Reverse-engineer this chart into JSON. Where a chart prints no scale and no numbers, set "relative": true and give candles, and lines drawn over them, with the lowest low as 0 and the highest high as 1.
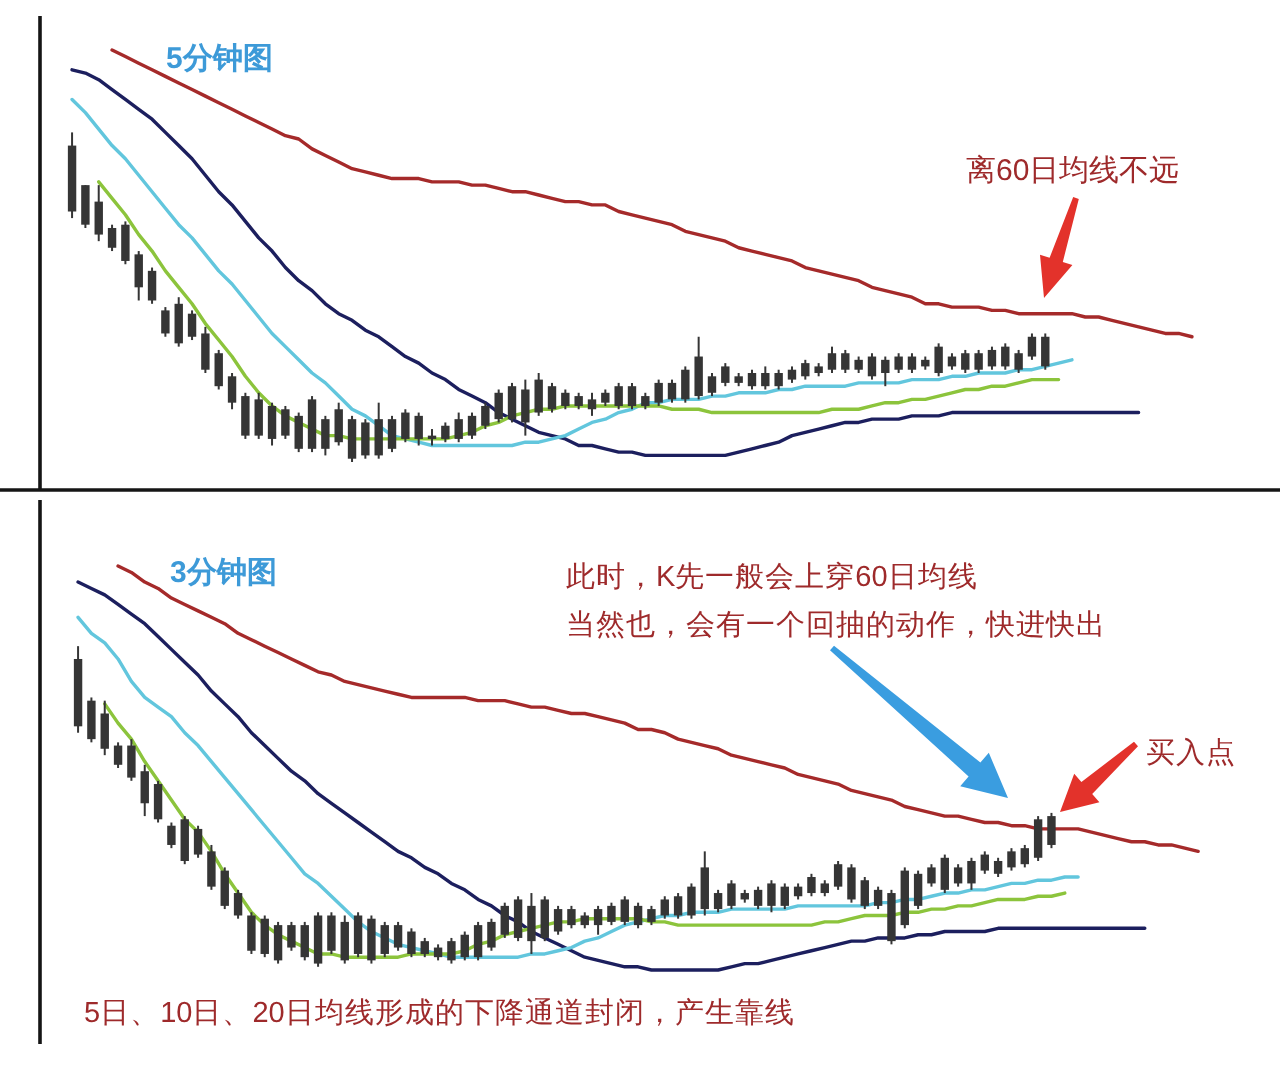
{
  "chart_data": [
    {
      "type": "candlestick",
      "title": "5分钟图",
      "relative": true,
      "color": "#353535",
      "categories": [
        null,
        null,
        null,
        null,
        null,
        null,
        null,
        null,
        null,
        null,
        null,
        null,
        null,
        null,
        null,
        null,
        null,
        null,
        null,
        null,
        null,
        null,
        null,
        null,
        null,
        null,
        null,
        null,
        null,
        null,
        null,
        null,
        null,
        null,
        null,
        null,
        null,
        null,
        null,
        null,
        null,
        null,
        null,
        null,
        null,
        null,
        null,
        null,
        null,
        null,
        null,
        null,
        null,
        null,
        null,
        null,
        null,
        null,
        null,
        null,
        null,
        null,
        null,
        null,
        null,
        null,
        null,
        null,
        null,
        null,
        null,
        null,
        null,
        null,
        null,
        null,
        null,
        null,
        null,
        null,
        null,
        null,
        null,
        null,
        null
      ],
      "ohlc": [
        [
          0.96,
          1.0,
          0.74,
          0.76
        ],
        [
          0.84,
          0.84,
          0.71,
          0.72
        ],
        [
          0.79,
          0.84,
          0.67,
          0.69
        ],
        [
          0.71,
          0.72,
          0.64,
          0.65
        ],
        [
          0.72,
          0.73,
          0.6,
          0.61
        ],
        [
          0.63,
          0.64,
          0.49,
          0.53
        ],
        [
          0.58,
          0.59,
          0.48,
          0.49
        ],
        [
          0.46,
          0.47,
          0.38,
          0.39
        ],
        [
          0.48,
          0.5,
          0.35,
          0.36
        ],
        [
          0.45,
          0.46,
          0.37,
          0.38
        ],
        [
          0.39,
          0.41,
          0.27,
          0.28
        ],
        [
          0.33,
          0.34,
          0.22,
          0.23
        ],
        [
          0.26,
          0.27,
          0.16,
          0.18
        ],
        [
          0.2,
          0.21,
          0.07,
          0.08
        ],
        [
          0.19,
          0.21,
          0.07,
          0.08
        ],
        [
          0.17,
          0.18,
          0.05,
          0.07
        ],
        [
          0.16,
          0.17,
          0.07,
          0.08
        ],
        [
          0.14,
          0.15,
          0.03,
          0.04
        ],
        [
          0.19,
          0.2,
          0.03,
          0.04
        ],
        [
          0.13,
          0.14,
          0.02,
          0.04
        ],
        [
          0.16,
          0.18,
          0.05,
          0.06
        ],
        [
          0.13,
          0.14,
          0.0,
          0.01
        ],
        [
          0.12,
          0.13,
          0.01,
          0.02
        ],
        [
          0.13,
          0.18,
          0.01,
          0.02
        ],
        [
          0.13,
          0.14,
          0.03,
          0.04
        ],
        [
          0.15,
          0.16,
          0.06,
          0.07
        ],
        [
          0.14,
          0.15,
          0.05,
          0.07
        ],
        [
          0.08,
          0.1,
          0.05,
          0.07
        ],
        [
          0.11,
          0.12,
          0.06,
          0.07
        ],
        [
          0.13,
          0.15,
          0.06,
          0.07
        ],
        [
          0.14,
          0.15,
          0.07,
          0.08
        ],
        [
          0.17,
          0.18,
          0.1,
          0.11
        ],
        [
          0.21,
          0.22,
          0.12,
          0.13
        ],
        [
          0.23,
          0.24,
          0.12,
          0.13
        ],
        [
          0.22,
          0.25,
          0.08,
          0.12
        ],
        [
          0.25,
          0.27,
          0.14,
          0.15
        ],
        [
          0.23,
          0.24,
          0.15,
          0.16
        ],
        [
          0.21,
          0.22,
          0.16,
          0.17
        ],
        [
          0.2,
          0.21,
          0.16,
          0.17
        ],
        [
          0.19,
          0.21,
          0.14,
          0.16
        ],
        [
          0.21,
          0.22,
          0.17,
          0.18
        ],
        [
          0.23,
          0.24,
          0.16,
          0.17
        ],
        [
          0.23,
          0.24,
          0.16,
          0.17
        ],
        [
          0.2,
          0.21,
          0.16,
          0.17
        ],
        [
          0.24,
          0.25,
          0.17,
          0.18
        ],
        [
          0.24,
          0.25,
          0.18,
          0.19
        ],
        [
          0.28,
          0.29,
          0.18,
          0.19
        ],
        [
          0.32,
          0.38,
          0.19,
          0.2
        ],
        [
          0.26,
          0.27,
          0.2,
          0.21
        ],
        [
          0.29,
          0.3,
          0.23,
          0.24
        ],
        [
          0.26,
          0.27,
          0.23,
          0.24
        ],
        [
          0.27,
          0.28,
          0.22,
          0.23
        ],
        [
          0.27,
          0.29,
          0.22,
          0.23
        ],
        [
          0.27,
          0.28,
          0.22,
          0.23
        ],
        [
          0.28,
          0.29,
          0.24,
          0.25
        ],
        [
          0.3,
          0.31,
          0.25,
          0.26
        ],
        [
          0.29,
          0.3,
          0.26,
          0.27
        ],
        [
          0.33,
          0.35,
          0.27,
          0.28
        ],
        [
          0.33,
          0.34,
          0.27,
          0.28
        ],
        [
          0.31,
          0.32,
          0.27,
          0.28
        ],
        [
          0.32,
          0.33,
          0.25,
          0.26
        ],
        [
          0.31,
          0.32,
          0.23,
          0.27
        ],
        [
          0.32,
          0.33,
          0.27,
          0.28
        ],
        [
          0.32,
          0.33,
          0.27,
          0.28
        ],
        [
          0.31,
          0.32,
          0.28,
          0.29
        ],
        [
          0.35,
          0.36,
          0.26,
          0.27
        ],
        [
          0.32,
          0.33,
          0.28,
          0.29
        ],
        [
          0.33,
          0.34,
          0.27,
          0.28
        ],
        [
          0.33,
          0.34,
          0.27,
          0.28
        ],
        [
          0.34,
          0.35,
          0.28,
          0.29
        ],
        [
          0.35,
          0.36,
          0.28,
          0.29
        ],
        [
          0.33,
          0.34,
          0.27,
          0.28
        ],
        [
          0.38,
          0.39,
          0.31,
          0.32
        ],
        [
          0.38,
          0.39,
          0.28,
          0.29
        ],
        null,
        null,
        null,
        null,
        null,
        null,
        null,
        null,
        null,
        null,
        null
      ],
      "series": [
        {
          "type": "line",
          "color": "#a52a2a",
          "values": [
            null,
            null,
            null,
            1.25,
            1.23,
            1.21,
            1.19,
            1.17,
            1.15,
            1.13,
            1.11,
            1.09,
            1.07,
            1.05,
            1.03,
            1.01,
            0.99,
            0.98,
            0.95,
            0.93,
            0.91,
            0.89,
            0.88,
            0.87,
            0.86,
            0.86,
            0.86,
            0.85,
            0.85,
            0.85,
            0.84,
            0.84,
            0.83,
            0.82,
            0.82,
            0.81,
            0.8,
            0.79,
            0.79,
            0.78,
            0.78,
            0.76,
            0.75,
            0.74,
            0.73,
            0.72,
            0.7,
            0.69,
            0.68,
            0.67,
            0.65,
            0.64,
            0.63,
            0.62,
            0.61,
            0.59,
            0.58,
            0.57,
            0.56,
            0.55,
            0.53,
            0.52,
            0.51,
            0.5,
            0.48,
            0.48,
            0.47,
            0.47,
            0.47,
            0.46,
            0.46,
            0.45,
            0.45,
            0.45,
            0.45,
            0.45,
            0.44,
            0.44,
            0.43,
            0.42,
            0.41,
            0.4,
            0.39,
            0.39,
            0.38
          ]
        },
        {
          "type": "line",
          "color": "#1c1f5e",
          "values": [
            1.19,
            1.18,
            1.16,
            1.13,
            1.1,
            1.07,
            1.04,
            1.0,
            0.96,
            0.92,
            0.87,
            0.82,
            0.78,
            0.73,
            0.68,
            0.64,
            0.59,
            0.55,
            0.52,
            0.48,
            0.45,
            0.43,
            0.4,
            0.38,
            0.35,
            0.32,
            0.3,
            0.27,
            0.25,
            0.22,
            0.2,
            0.18,
            0.15,
            0.13,
            0.11,
            0.09,
            0.08,
            0.07,
            0.05,
            0.05,
            0.04,
            0.03,
            0.03,
            0.02,
            0.02,
            0.02,
            0.02,
            0.02,
            0.02,
            0.02,
            0.03,
            0.04,
            0.05,
            0.06,
            0.08,
            0.09,
            0.1,
            0.11,
            0.12,
            0.12,
            0.13,
            0.13,
            0.13,
            0.14,
            0.14,
            0.14,
            0.15,
            0.15,
            0.15,
            0.15,
            0.15,
            0.15,
            0.15,
            0.15,
            0.15,
            0.15,
            0.15,
            0.15,
            0.15,
            0.15,
            0.15,
            null,
            null,
            null,
            null
          ]
        },
        {
          "type": "line",
          "color": "#62c6dd",
          "values": [
            1.1,
            1.06,
            1.01,
            0.96,
            0.92,
            0.87,
            0.82,
            0.77,
            0.72,
            0.68,
            0.63,
            0.58,
            0.54,
            0.49,
            0.44,
            0.39,
            0.35,
            0.31,
            0.27,
            0.24,
            0.2,
            0.16,
            0.14,
            0.11,
            0.08,
            0.07,
            0.06,
            0.05,
            0.05,
            0.05,
            0.05,
            0.05,
            0.05,
            0.05,
            0.06,
            0.06,
            0.07,
            0.08,
            0.1,
            0.12,
            0.13,
            0.15,
            0.16,
            0.18,
            0.18,
            0.19,
            0.19,
            0.19,
            0.2,
            0.2,
            0.21,
            0.21,
            0.21,
            0.22,
            0.22,
            0.23,
            0.23,
            0.23,
            0.23,
            0.24,
            0.24,
            0.24,
            0.24,
            0.25,
            0.25,
            0.25,
            0.26,
            0.26,
            0.27,
            0.27,
            0.27,
            0.28,
            0.28,
            0.29,
            0.3,
            0.31,
            null,
            null,
            null,
            null,
            null,
            null,
            null,
            null,
            null
          ]
        },
        {
          "type": "line",
          "color": "#8cc43c",
          "values": [
            null,
            null,
            0.85,
            0.8,
            0.75,
            0.69,
            0.64,
            0.58,
            0.53,
            0.48,
            0.42,
            0.37,
            0.32,
            0.26,
            0.21,
            0.17,
            0.14,
            0.12,
            0.1,
            0.08,
            0.08,
            0.07,
            0.07,
            0.07,
            0.07,
            0.07,
            0.07,
            0.07,
            0.07,
            0.08,
            0.09,
            0.11,
            0.12,
            0.14,
            0.15,
            0.16,
            0.16,
            0.17,
            0.17,
            0.17,
            0.17,
            0.17,
            0.17,
            0.17,
            0.17,
            0.16,
            0.16,
            0.16,
            0.15,
            0.15,
            0.15,
            0.15,
            0.15,
            0.15,
            0.15,
            0.15,
            0.15,
            0.16,
            0.16,
            0.16,
            0.17,
            0.18,
            0.18,
            0.19,
            0.19,
            0.2,
            0.21,
            0.22,
            0.22,
            0.23,
            0.23,
            0.24,
            0.25,
            0.25,
            0.25,
            null,
            null,
            null,
            null,
            null,
            null,
            null,
            null,
            null,
            null
          ]
        }
      ],
      "annotations": [
        "离60日均线不远"
      ]
    },
    {
      "type": "candlestick",
      "title": "3分钟图",
      "relative": true,
      "color": "#353535",
      "categories": [
        null,
        null,
        null,
        null,
        null,
        null,
        null,
        null,
        null,
        null,
        null,
        null,
        null,
        null,
        null,
        null,
        null,
        null,
        null,
        null,
        null,
        null,
        null,
        null,
        null,
        null,
        null,
        null,
        null,
        null,
        null,
        null,
        null,
        null,
        null,
        null,
        null,
        null,
        null,
        null,
        null,
        null,
        null,
        null,
        null,
        null,
        null,
        null,
        null,
        null,
        null,
        null,
        null,
        null,
        null,
        null,
        null,
        null,
        null,
        null,
        null,
        null,
        null,
        null,
        null,
        null,
        null,
        null,
        null,
        null,
        null,
        null,
        null,
        null,
        null,
        null,
        null,
        null,
        null,
        null,
        null,
        null,
        null,
        null,
        null
      ],
      "ohlc": [
        [
          0.96,
          1.0,
          0.73,
          0.75
        ],
        [
          0.83,
          0.84,
          0.7,
          0.71
        ],
        [
          0.79,
          0.83,
          0.66,
          0.68
        ],
        [
          0.69,
          0.7,
          0.62,
          0.63
        ],
        [
          0.69,
          0.71,
          0.58,
          0.59
        ],
        [
          0.61,
          0.63,
          0.47,
          0.51
        ],
        [
          0.57,
          0.58,
          0.45,
          0.46
        ],
        [
          0.44,
          0.45,
          0.37,
          0.38
        ],
        [
          0.46,
          0.47,
          0.32,
          0.33
        ],
        [
          0.43,
          0.44,
          0.34,
          0.35
        ],
        [
          0.36,
          0.38,
          0.24,
          0.25
        ],
        [
          0.3,
          0.31,
          0.18,
          0.19
        ],
        [
          0.23,
          0.24,
          0.15,
          0.16
        ],
        [
          0.16,
          0.17,
          0.04,
          0.05
        ],
        [
          0.15,
          0.16,
          0.03,
          0.04
        ],
        [
          0.13,
          0.14,
          0.01,
          0.02
        ],
        [
          0.13,
          0.14,
          0.05,
          0.06
        ],
        [
          0.13,
          0.14,
          0.02,
          0.03
        ],
        [
          0.16,
          0.17,
          0.0,
          0.01
        ],
        [
          0.16,
          0.17,
          0.04,
          0.05
        ],
        [
          0.14,
          0.16,
          0.01,
          0.02
        ],
        [
          0.16,
          0.17,
          0.03,
          0.04
        ],
        [
          0.15,
          0.16,
          0.01,
          0.02
        ],
        [
          0.13,
          0.14,
          0.03,
          0.04
        ],
        [
          0.13,
          0.14,
          0.05,
          0.06
        ],
        [
          0.11,
          0.12,
          0.03,
          0.04
        ],
        [
          0.08,
          0.09,
          0.03,
          0.04
        ],
        [
          0.06,
          0.07,
          0.02,
          0.03
        ],
        [
          0.08,
          0.09,
          0.01,
          0.02
        ],
        [
          0.1,
          0.11,
          0.02,
          0.03
        ],
        [
          0.13,
          0.14,
          0.02,
          0.03
        ],
        [
          0.14,
          0.15,
          0.05,
          0.06
        ],
        [
          0.19,
          0.2,
          0.09,
          0.1
        ],
        [
          0.21,
          0.22,
          0.08,
          0.09
        ],
        [
          0.19,
          0.23,
          0.04,
          0.08
        ],
        [
          0.21,
          0.22,
          0.08,
          0.09
        ],
        [
          0.18,
          0.19,
          0.1,
          0.11
        ],
        [
          0.18,
          0.19,
          0.12,
          0.13
        ],
        [
          0.16,
          0.17,
          0.12,
          0.13
        ],
        [
          0.18,
          0.19,
          0.1,
          0.13
        ],
        [
          0.19,
          0.2,
          0.13,
          0.14
        ],
        [
          0.21,
          0.22,
          0.13,
          0.14
        ],
        [
          0.19,
          0.2,
          0.12,
          0.13
        ],
        [
          0.18,
          0.19,
          0.13,
          0.14
        ],
        [
          0.21,
          0.22,
          0.15,
          0.16
        ],
        [
          0.22,
          0.23,
          0.15,
          0.16
        ],
        [
          0.25,
          0.26,
          0.15,
          0.16
        ],
        [
          0.31,
          0.36,
          0.16,
          0.18
        ],
        [
          0.23,
          0.24,
          0.17,
          0.18
        ],
        [
          0.26,
          0.27,
          0.18,
          0.19
        ],
        [
          0.23,
          0.24,
          0.2,
          0.21
        ],
        [
          0.24,
          0.25,
          0.18,
          0.19
        ],
        [
          0.26,
          0.27,
          0.17,
          0.19
        ],
        [
          0.25,
          0.26,
          0.18,
          0.19
        ],
        [
          0.25,
          0.26,
          0.21,
          0.22
        ],
        [
          0.28,
          0.29,
          0.22,
          0.23
        ],
        [
          0.26,
          0.27,
          0.22,
          0.23
        ],
        [
          0.32,
          0.33,
          0.24,
          0.25
        ],
        [
          0.31,
          0.32,
          0.2,
          0.21
        ],
        [
          0.27,
          0.28,
          0.18,
          0.19
        ],
        [
          0.24,
          0.25,
          0.18,
          0.19
        ],
        [
          0.23,
          0.24,
          0.07,
          0.08
        ],
        [
          0.3,
          0.31,
          0.12,
          0.13
        ],
        [
          0.29,
          0.3,
          0.18,
          0.19
        ],
        [
          0.31,
          0.32,
          0.25,
          0.26
        ],
        [
          0.34,
          0.35,
          0.23,
          0.24
        ],
        [
          0.31,
          0.32,
          0.25,
          0.26
        ],
        [
          0.33,
          0.34,
          0.24,
          0.26
        ],
        [
          0.35,
          0.36,
          0.29,
          0.3
        ],
        [
          0.33,
          0.34,
          0.28,
          0.29
        ],
        [
          0.36,
          0.37,
          0.3,
          0.31
        ],
        [
          0.37,
          0.38,
          0.31,
          0.32
        ],
        [
          0.46,
          0.47,
          0.33,
          0.34
        ],
        [
          0.47,
          0.48,
          0.37,
          0.38
        ],
        null,
        null,
        null,
        null,
        null,
        null,
        null,
        null,
        null,
        null,
        null
      ],
      "series": [
        {
          "type": "line",
          "color": "#a52a2a",
          "values": [
            null,
            null,
            null,
            1.25,
            1.23,
            1.2,
            1.18,
            1.15,
            1.13,
            1.11,
            1.09,
            1.07,
            1.04,
            1.02,
            1.0,
            0.98,
            0.96,
            0.94,
            0.92,
            0.91,
            0.89,
            0.88,
            0.87,
            0.86,
            0.85,
            0.84,
            0.84,
            0.84,
            0.84,
            0.84,
            0.83,
            0.83,
            0.83,
            0.82,
            0.81,
            0.81,
            0.8,
            0.79,
            0.79,
            0.78,
            0.77,
            0.76,
            0.74,
            0.74,
            0.73,
            0.71,
            0.7,
            0.69,
            0.68,
            0.66,
            0.65,
            0.64,
            0.63,
            0.62,
            0.6,
            0.59,
            0.58,
            0.57,
            0.55,
            0.54,
            0.53,
            0.52,
            0.5,
            0.49,
            0.48,
            0.47,
            0.47,
            0.46,
            0.45,
            0.45,
            0.44,
            0.44,
            0.43,
            0.43,
            0.43,
            0.43,
            0.42,
            0.41,
            0.4,
            0.39,
            0.39,
            0.38,
            0.38,
            0.37,
            0.36
          ]
        },
        {
          "type": "line",
          "color": "#1c1f5e",
          "values": [
            1.2,
            1.18,
            1.16,
            1.13,
            1.1,
            1.07,
            1.03,
            0.99,
            0.95,
            0.91,
            0.86,
            0.82,
            0.78,
            0.73,
            0.69,
            0.65,
            0.61,
            0.58,
            0.54,
            0.51,
            0.48,
            0.45,
            0.42,
            0.39,
            0.36,
            0.34,
            0.31,
            0.29,
            0.26,
            0.24,
            0.21,
            0.19,
            0.16,
            0.14,
            0.11,
            0.09,
            0.07,
            0.05,
            0.03,
            0.02,
            0.01,
            0.0,
            0.0,
            -0.01,
            -0.01,
            -0.01,
            -0.01,
            -0.01,
            -0.01,
            0.0,
            0.01,
            0.01,
            0.02,
            0.03,
            0.04,
            0.05,
            0.06,
            0.07,
            0.08,
            0.08,
            0.09,
            0.09,
            0.09,
            0.1,
            0.1,
            0.11,
            0.11,
            0.11,
            0.11,
            0.12,
            0.12,
            0.12,
            0.12,
            0.12,
            0.12,
            0.12,
            0.12,
            0.12,
            0.12,
            0.12,
            0.12,
            null,
            null,
            null,
            null
          ]
        },
        {
          "type": "line",
          "color": "#62c6dd",
          "values": [
            1.09,
            1.04,
            1.01,
            0.96,
            0.89,
            0.84,
            0.81,
            0.78,
            0.73,
            0.69,
            0.64,
            0.59,
            0.54,
            0.49,
            0.44,
            0.39,
            0.34,
            0.29,
            0.26,
            0.22,
            0.18,
            0.14,
            0.11,
            0.09,
            0.07,
            0.06,
            0.05,
            0.04,
            0.03,
            0.03,
            0.03,
            0.03,
            0.03,
            0.03,
            0.04,
            0.04,
            0.05,
            0.06,
            0.08,
            0.09,
            0.11,
            0.13,
            0.14,
            0.15,
            0.16,
            0.16,
            0.17,
            0.17,
            0.17,
            0.18,
            0.18,
            0.18,
            0.18,
            0.18,
            0.19,
            0.19,
            0.19,
            0.19,
            0.19,
            0.19,
            0.2,
            0.2,
            0.21,
            0.21,
            0.22,
            0.23,
            0.23,
            0.24,
            0.24,
            0.25,
            0.26,
            0.26,
            0.27,
            0.27,
            0.28,
            0.28,
            null,
            null,
            null,
            null,
            null,
            null,
            null,
            null,
            null
          ]
        },
        {
          "type": "line",
          "color": "#8cc43c",
          "values": [
            null,
            null,
            0.82,
            0.76,
            0.71,
            0.64,
            0.58,
            0.52,
            0.46,
            0.42,
            0.36,
            0.29,
            0.23,
            0.17,
            0.13,
            0.1,
            0.08,
            0.06,
            0.04,
            0.04,
            0.03,
            0.03,
            0.03,
            0.03,
            0.03,
            0.04,
            0.04,
            0.04,
            0.04,
            0.05,
            0.07,
            0.08,
            0.1,
            0.11,
            0.12,
            0.13,
            0.14,
            0.14,
            0.15,
            0.15,
            0.15,
            0.15,
            0.15,
            0.14,
            0.14,
            0.13,
            0.13,
            0.13,
            0.13,
            0.13,
            0.13,
            0.13,
            0.13,
            0.13,
            0.13,
            0.13,
            0.14,
            0.14,
            0.15,
            0.16,
            0.16,
            0.16,
            0.17,
            0.17,
            0.18,
            0.18,
            0.19,
            0.19,
            0.2,
            0.21,
            0.21,
            0.21,
            0.22,
            0.22,
            0.23,
            null,
            null,
            null,
            null,
            null,
            null,
            null,
            null,
            null,
            null
          ]
        }
      ],
      "annotations": [
        "此时，K先一般会上穿60日均线",
        "当然也，会有一个回抽的动作，快进快出",
        "买入点",
        "5日、10日、20日均线形成的下降通道封闭，产生靠线"
      ]
    }
  ]
}
